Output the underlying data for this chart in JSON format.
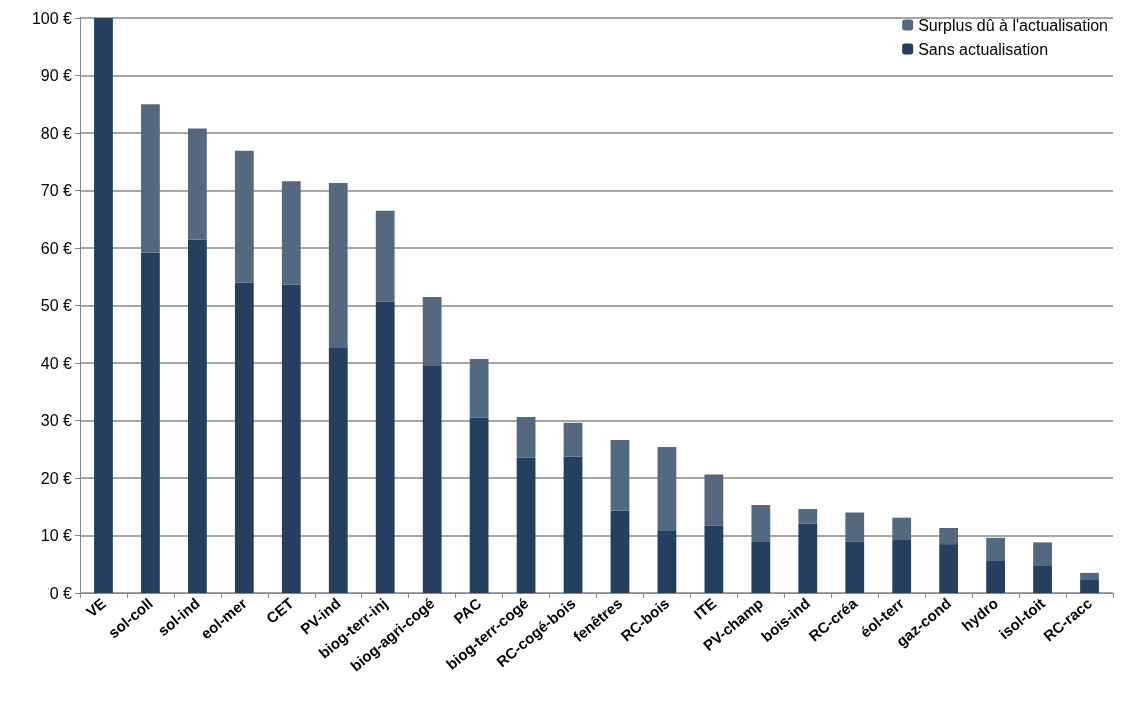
{
  "chart_data": {
    "type": "bar",
    "stacked": true,
    "categories": [
      "VE",
      "sol-coll",
      "sol-ind",
      "eol-mer",
      "CET",
      "PV-ind",
      "biog-terr-inj",
      "biog-agri-cogé",
      "PAC",
      "biog-terr-cogé",
      "RC-cogé-bois",
      "fenêtres",
      "RC-bois",
      "ITE",
      "PV-champ",
      "bois-ind",
      "RC-créa",
      "éol-terr",
      "gaz-cond",
      "hydro",
      "isol-toit",
      "RC-racc"
    ],
    "series": [
      {
        "name": "Sans actualisation",
        "color": "#243f60",
        "values": [
          100,
          59.2,
          61.5,
          54,
          53.6,
          42.6,
          50.7,
          39.5,
          30.5,
          23.5,
          23.7,
          14.3,
          10.8,
          11.7,
          9,
          12.1,
          8.9,
          9.2,
          8.5,
          5.7,
          4.7,
          2.4
        ]
      },
      {
        "name": "Surplus dû à l'actualisation",
        "color": "#546880",
        "values": [
          0,
          25.8,
          19.3,
          22.9,
          18,
          28.7,
          15.8,
          12,
          10.2,
          7.1,
          5.9,
          12.3,
          14.6,
          8.9,
          6.3,
          2.5,
          5.1,
          3.9,
          2.8,
          3.9,
          4.1,
          1.1
        ]
      }
    ],
    "ylim": [
      0,
      100
    ],
    "yticks": [
      {
        "value": 0,
        "label": "0 €"
      },
      {
        "value": 10,
        "label": "10 €"
      },
      {
        "value": 20,
        "label": "20 €"
      },
      {
        "value": 30,
        "label": "30 €"
      },
      {
        "value": 40,
        "label": "40 €"
      },
      {
        "value": 50,
        "label": "50 €"
      },
      {
        "value": 60,
        "label": "60 €"
      },
      {
        "value": 70,
        "label": "70 €"
      },
      {
        "value": 80,
        "label": "80 €"
      },
      {
        "value": 90,
        "label": "90 €"
      },
      {
        "value": 100,
        "label": "100 €"
      }
    ],
    "grid": "y",
    "legend": "top right"
  }
}
